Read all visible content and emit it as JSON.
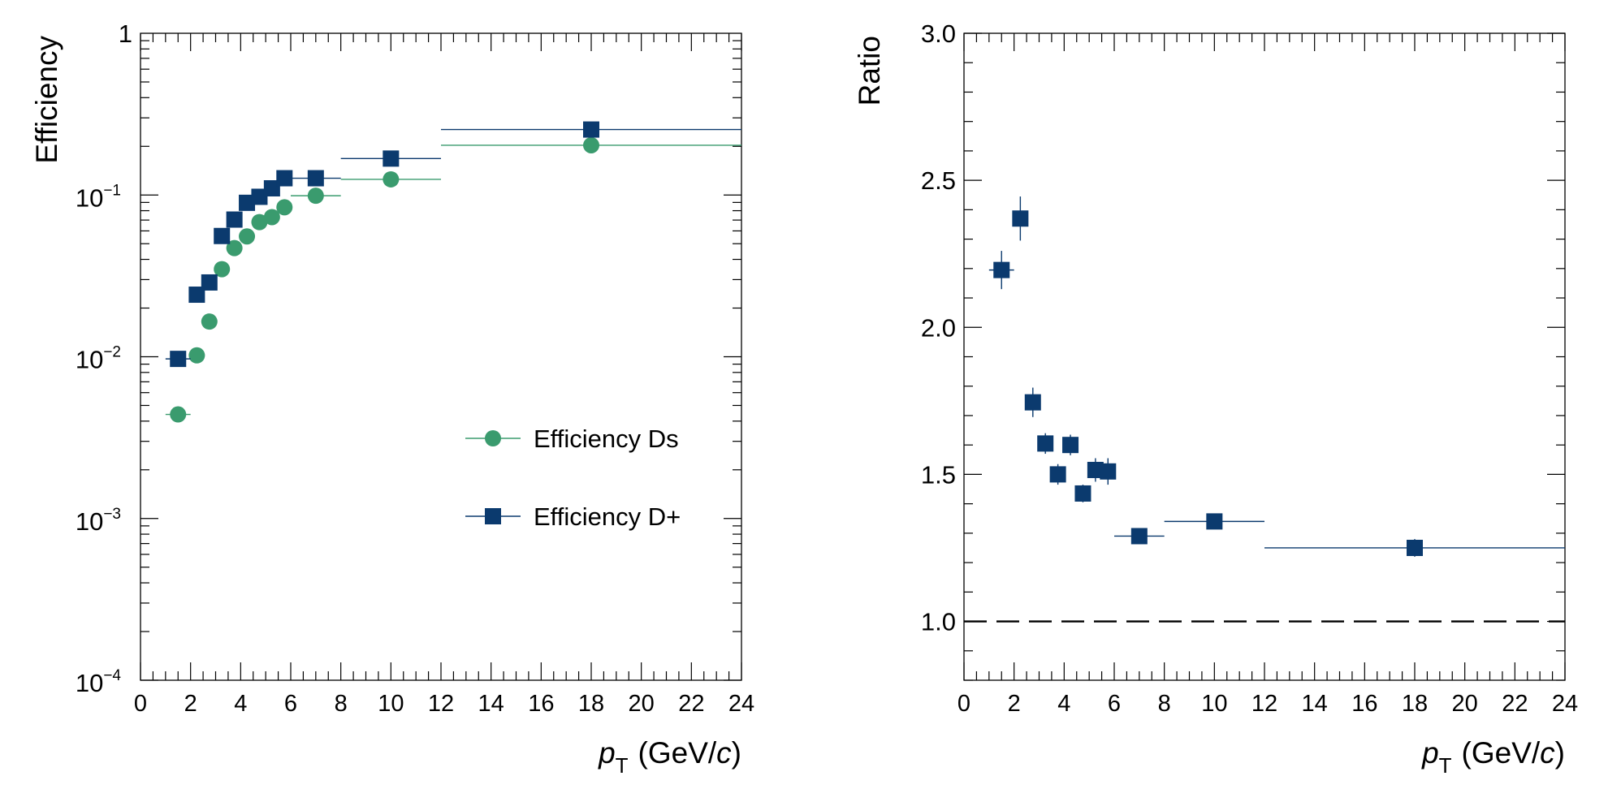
{
  "chart_data": [
    {
      "type": "scatter",
      "ylabel": "Efficiency",
      "xlabel_var": "p",
      "xlabel_sub": "T",
      "xlabel_unit_pre": "(GeV/",
      "xlabel_unit_it": "c",
      "xlabel_unit_post": ")",
      "xlim": [
        0,
        24
      ],
      "ylim": [
        0.0001,
        1
      ],
      "yscale": "log",
      "x_ticks": [
        "0",
        "2",
        "4",
        "6",
        "8",
        "10",
        "12",
        "14",
        "16",
        "18",
        "20",
        "22",
        "24"
      ],
      "y_ticks": [
        {
          "value": 1,
          "label": "1",
          "exp": ""
        },
        {
          "value": 0.1,
          "label": "10",
          "exp": "−1"
        },
        {
          "value": 0.01,
          "label": "10",
          "exp": "−2"
        },
        {
          "value": 0.001,
          "label": "10",
          "exp": "−3"
        },
        {
          "value": 0.0001,
          "label": "10",
          "exp": "−4"
        }
      ],
      "legend_position": "center-right",
      "series": [
        {
          "name": "Efficiency Ds",
          "color": "#3a9b6e",
          "marker": "circle",
          "points": [
            {
              "x": 1.5,
              "xlo": 1,
              "xhi": 2,
              "y": 0.0044
            },
            {
              "x": 2.25,
              "xlo": 2,
              "xhi": 2.5,
              "y": 0.0102
            },
            {
              "x": 2.75,
              "xlo": 2.5,
              "xhi": 3,
              "y": 0.0165
            },
            {
              "x": 3.25,
              "xlo": 3,
              "xhi": 3.5,
              "y": 0.0348
            },
            {
              "x": 3.75,
              "xlo": 3.5,
              "xhi": 4,
              "y": 0.047
            },
            {
              "x": 4.25,
              "xlo": 4,
              "xhi": 4.5,
              "y": 0.0555
            },
            {
              "x": 4.75,
              "xlo": 4.5,
              "xhi": 5,
              "y": 0.068
            },
            {
              "x": 5.25,
              "xlo": 5,
              "xhi": 5.5,
              "y": 0.073
            },
            {
              "x": 5.75,
              "xlo": 5.5,
              "xhi": 6,
              "y": 0.084
            },
            {
              "x": 7,
              "xlo": 6,
              "xhi": 8,
              "y": 0.099
            },
            {
              "x": 10,
              "xlo": 8,
              "xhi": 12,
              "y": 0.125
            },
            {
              "x": 18,
              "xlo": 12,
              "xhi": 24,
              "y": 0.203
            }
          ]
        },
        {
          "name": "Efficiency D+",
          "color": "#0b3a6e",
          "marker": "square",
          "points": [
            {
              "x": 1.5,
              "xlo": 1,
              "xhi": 2,
              "y": 0.0097
            },
            {
              "x": 2.25,
              "xlo": 2,
              "xhi": 2.5,
              "y": 0.0242
            },
            {
              "x": 2.75,
              "xlo": 2.5,
              "xhi": 3,
              "y": 0.0288
            },
            {
              "x": 3.25,
              "xlo": 3,
              "xhi": 3.5,
              "y": 0.0558
            },
            {
              "x": 3.75,
              "xlo": 3.5,
              "xhi": 4,
              "y": 0.0705
            },
            {
              "x": 4.25,
              "xlo": 4,
              "xhi": 4.5,
              "y": 0.0895
            },
            {
              "x": 4.75,
              "xlo": 4.5,
              "xhi": 5,
              "y": 0.0975
            },
            {
              "x": 5.25,
              "xlo": 5,
              "xhi": 5.5,
              "y": 0.11
            },
            {
              "x": 5.75,
              "xlo": 5.5,
              "xhi": 6,
              "y": 0.127
            },
            {
              "x": 7,
              "xlo": 6,
              "xhi": 8,
              "y": 0.127
            },
            {
              "x": 10,
              "xlo": 8,
              "xhi": 12,
              "y": 0.168
            },
            {
              "x": 18,
              "xlo": 12,
              "xhi": 24,
              "y": 0.254
            }
          ]
        }
      ]
    },
    {
      "type": "scatter",
      "ylabel": "Ratio",
      "xlabel_var": "p",
      "xlabel_sub": "T",
      "xlabel_unit_pre": "(GeV/",
      "xlabel_unit_it": "c",
      "xlabel_unit_post": ")",
      "xlim": [
        0,
        24
      ],
      "ylim": [
        0.8,
        3.0
      ],
      "yscale": "linear",
      "x_ticks": [
        "0",
        "2",
        "4",
        "6",
        "8",
        "10",
        "12",
        "14",
        "16",
        "18",
        "20",
        "22",
        "24"
      ],
      "y_ticks": [
        {
          "value": 1.0,
          "label": "1.0"
        },
        {
          "value": 1.5,
          "label": "1.5"
        },
        {
          "value": 2.0,
          "label": "2.0"
        },
        {
          "value": 2.5,
          "label": "2.5"
        },
        {
          "value": 3.0,
          "label": "3.0"
        }
      ],
      "reference_line": {
        "y": 1.0,
        "style": "dashed"
      },
      "series": [
        {
          "color": "#0b3a6e",
          "marker": "square",
          "points": [
            {
              "x": 1.5,
              "xlo": 1,
              "xhi": 2,
              "y": 2.195,
              "err": 0.065
            },
            {
              "x": 2.25,
              "xlo": 2,
              "xhi": 2.5,
              "y": 2.37,
              "err": 0.075
            },
            {
              "x": 2.75,
              "xlo": 2.5,
              "xhi": 3,
              "y": 1.745,
              "err": 0.05
            },
            {
              "x": 3.25,
              "xlo": 3,
              "xhi": 3.5,
              "y": 1.605,
              "err": 0.035
            },
            {
              "x": 3.75,
              "xlo": 3.5,
              "xhi": 4,
              "y": 1.5,
              "err": 0.035
            },
            {
              "x": 4.25,
              "xlo": 4,
              "xhi": 4.5,
              "y": 1.6,
              "err": 0.035
            },
            {
              "x": 4.75,
              "xlo": 4.5,
              "xhi": 5,
              "y": 1.435,
              "err": 0.03
            },
            {
              "x": 5.25,
              "xlo": 5,
              "xhi": 5.5,
              "y": 1.515,
              "err": 0.04
            },
            {
              "x": 5.75,
              "xlo": 5.5,
              "xhi": 6,
              "y": 1.51,
              "err": 0.045
            },
            {
              "x": 7,
              "xlo": 6,
              "xhi": 8,
              "y": 1.29,
              "err": 0.02
            },
            {
              "x": 10,
              "xlo": 8,
              "xhi": 12,
              "y": 1.34,
              "err": 0.025
            },
            {
              "x": 18,
              "xlo": 12,
              "xhi": 24,
              "y": 1.25,
              "err": 0.03
            }
          ]
        }
      ]
    }
  ]
}
